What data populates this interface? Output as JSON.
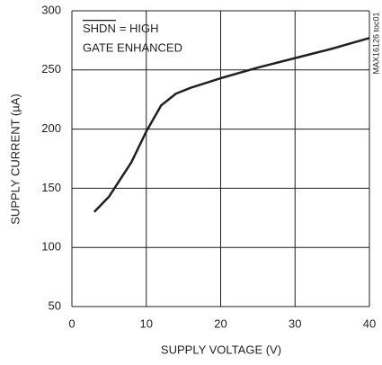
{
  "chart_data": {
    "type": "line",
    "x_label": "SUPPLY VOLTAGE (V)",
    "y_label": "SUPPLY CURRENT (µA)",
    "annotation": {
      "signal": "SHDN",
      "state": "= HIGH",
      "mode": "GATE ENHANCED"
    },
    "figure_id": "MAX16126 toc01",
    "x": [
      3,
      5,
      8,
      10,
      12,
      14,
      16,
      20,
      25,
      30,
      35,
      40
    ],
    "series": [
      {
        "color": "#231f20",
        "values": [
          130,
          143,
          172,
          198,
          220,
          230,
          235,
          243,
          252,
          260,
          268,
          277
        ]
      }
    ],
    "xlim": [
      0,
      40
    ],
    "xticks": [
      0,
      10,
      20,
      30,
      40
    ],
    "ylim": [
      50,
      300
    ],
    "yticks": [
      50,
      100,
      150,
      200,
      250,
      300
    ],
    "grid": true
  }
}
